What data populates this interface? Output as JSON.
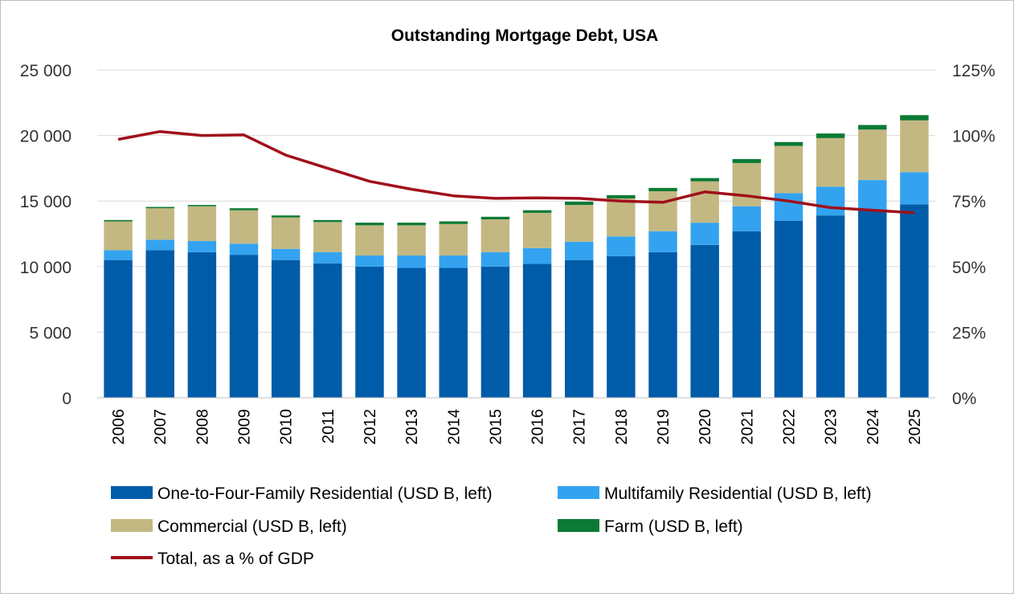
{
  "chart_data": {
    "type": "bar",
    "stacked": true,
    "title": "Outstanding Mortgage Debt, USA",
    "categories": [
      "2006",
      "2007",
      "2008",
      "2009",
      "2010",
      "2011",
      "2012",
      "2013",
      "2014",
      "2015",
      "2016",
      "2017",
      "2018",
      "2019",
      "2020",
      "2021",
      "2022",
      "2023",
      "2024",
      "2025"
    ],
    "y_left": {
      "min": 0,
      "max": 25000,
      "ticks": [
        0,
        5000,
        10000,
        15000,
        20000,
        25000
      ],
      "tick_labels": [
        "0",
        "5 000",
        "10 000",
        "15 000",
        "20 000",
        "25 000"
      ]
    },
    "y_right": {
      "min": 0,
      "max": 125,
      "ticks": [
        0,
        25,
        50,
        75,
        100,
        125
      ],
      "tick_labels": [
        "0%",
        "25%",
        "50%",
        "75%",
        "100%",
        "125%"
      ]
    },
    "series": [
      {
        "name": "One-to-Four-Family Residential (USD B, left)",
        "type": "bar",
        "axis": "left",
        "color": "#005ca8",
        "values": [
          10500,
          11250,
          11100,
          10900,
          10500,
          10250,
          10000,
          9900,
          9900,
          10000,
          10200,
          10500,
          10800,
          11100,
          11650,
          12700,
          13500,
          13900,
          14300,
          14750
        ]
      },
      {
        "name": "Multifamily Residential (USD B, left)",
        "type": "bar",
        "axis": "left",
        "color": "#33a3f0",
        "values": [
          750,
          800,
          850,
          850,
          850,
          850,
          850,
          950,
          950,
          1100,
          1200,
          1400,
          1500,
          1600,
          1700,
          1900,
          2100,
          2200,
          2300,
          2450
        ]
      },
      {
        "name": "Commercial (USD B, left)",
        "type": "bar",
        "axis": "left",
        "color": "#c3b882",
        "values": [
          2200,
          2400,
          2650,
          2550,
          2400,
          2300,
          2300,
          2300,
          2400,
          2500,
          2700,
          2800,
          2900,
          3050,
          3150,
          3300,
          3600,
          3700,
          3850,
          3950
        ]
      },
      {
        "name": "Farm (USD B, left)",
        "type": "bar",
        "axis": "left",
        "color": "#0b7a34",
        "values": [
          100,
          100,
          100,
          150,
          150,
          150,
          200,
          200,
          200,
          200,
          200,
          250,
          250,
          250,
          250,
          300,
          300,
          350,
          350,
          400
        ]
      },
      {
        "name": "Total, as a % of GDP",
        "type": "line",
        "axis": "right",
        "color": "#a0101a",
        "values": [
          98.5,
          101.5,
          100,
          100.2,
          92.5,
          87.5,
          82.5,
          79.5,
          77,
          76,
          76.2,
          76,
          75,
          74.5,
          78.5,
          77,
          75,
          72.5,
          71.5,
          70.5
        ]
      }
    ],
    "legend_position": "bottom",
    "grid": true
  }
}
